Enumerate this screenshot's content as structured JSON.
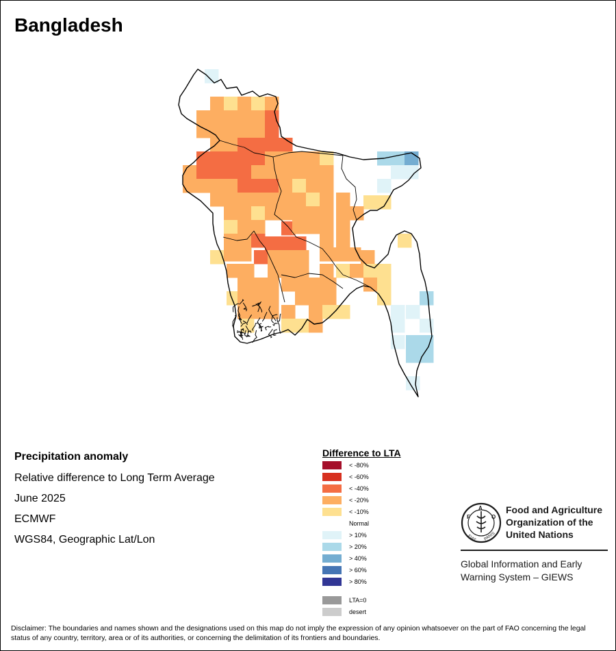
{
  "map": {
    "title": "Bangladesh",
    "variable": "Precipitation anomaly",
    "description": "Relative difference to Long Term Average",
    "period": "June 2025",
    "source": "ECMWF",
    "projection": "WGS84, Geographic Lat/Lon",
    "region": "Bangladesh",
    "legend": {
      "title": "Difference to LTA",
      "classes": [
        {
          "label": "< -80%",
          "color": "#a50f2a"
        },
        {
          "label": "< -60%",
          "color": "#d7301f"
        },
        {
          "label": "< -40%",
          "color": "#f46d43"
        },
        {
          "label": "< -20%",
          "color": "#fdae61"
        },
        {
          "label": "< -10%",
          "color": "#fee090"
        },
        {
          "label": "Normal",
          "color": "#ffffff"
        },
        {
          "label": "> 10%",
          "color": "#e0f3f8"
        },
        {
          "label": "> 20%",
          "color": "#abd9e9"
        },
        {
          "label": "> 40%",
          "color": "#74add1"
        },
        {
          "label": "> 60%",
          "color": "#4575b4"
        },
        {
          "label": "> 80%",
          "color": "#313695"
        },
        {
          "label": "LTA=0",
          "color": "#999999"
        },
        {
          "label": "desert",
          "color": "#cccccc"
        }
      ]
    }
  },
  "organization": {
    "logo_text": "FAO FIAT PANIS",
    "name_lines": [
      "Food and Agriculture",
      "Organization of the",
      "United Nations"
    ],
    "system_lines": [
      "Global Information and Early",
      "Warning System – GIEWS"
    ]
  },
  "disclaimer": "Disclaimer: The boundaries and names shown and the designations used on this map do not imply the expression of any opinion whatsoever on the part of FAO concerning the legal status of any country, territory, area or of its authorities, or concerning the delimitation of its frontiers and boundaries."
}
